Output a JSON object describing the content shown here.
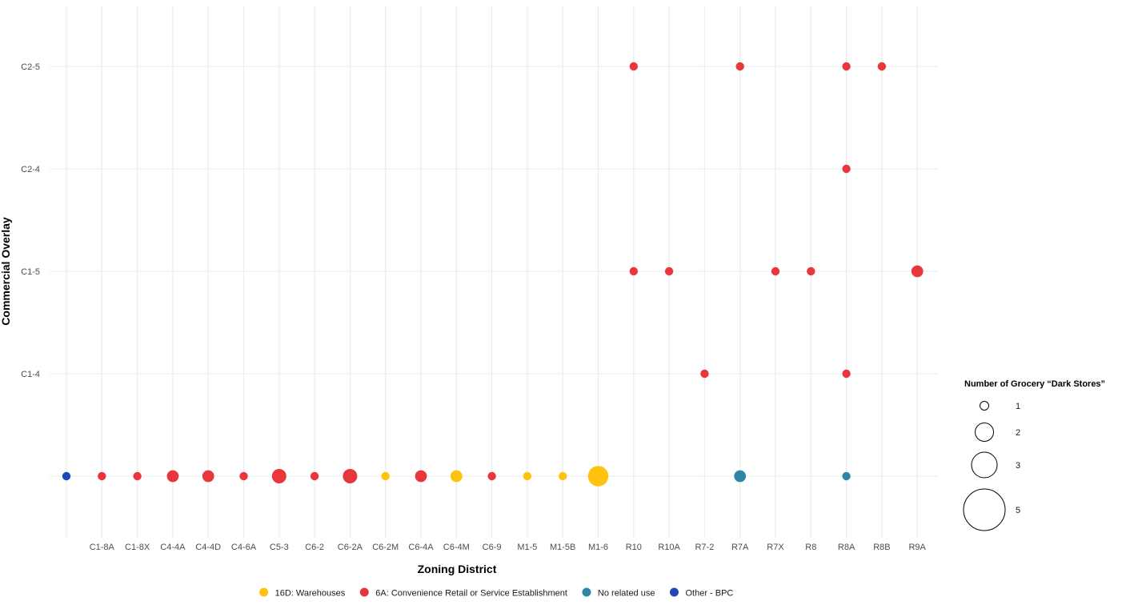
{
  "chart_data": {
    "type": "scatter",
    "title": "",
    "xlabel": "Zoning District",
    "ylabel": "Commercial Overlay",
    "x_categories": [
      "",
      "C1-8A",
      "C1-8X",
      "C4-4A",
      "C4-4D",
      "C4-6A",
      "C5-3",
      "C6-2",
      "C6-2A",
      "C6-2M",
      "C6-4A",
      "C6-4M",
      "C6-9",
      "M1-5",
      "M1-5B",
      "M1-6",
      "R10",
      "R10A",
      "R7-2",
      "R7A",
      "R7X",
      "R8",
      "R8A",
      "R8B",
      "R9A"
    ],
    "y_categories": [
      "",
      "C1-4",
      "C1-5",
      "C2-4",
      "C2-5"
    ],
    "grid": true,
    "color_legend": {
      "position": "bottom",
      "entries": [
        {
          "name": "16D: Warehouses",
          "color": "#FFC20E"
        },
        {
          "name": "6A: Convenience Retail or Service Establishment",
          "color": "#E8363A"
        },
        {
          "name": "No related use",
          "color": "#2E86A6"
        },
        {
          "name": "Other - BPC",
          "color": "#1F47B5"
        }
      ]
    },
    "size_legend": {
      "title": "Number of Grocery “Dark Stores”",
      "position": "right",
      "values": [
        1,
        2,
        3,
        5
      ]
    },
    "points": [
      {
        "x": "",
        "y": "",
        "n": 1,
        "group": "Other - BPC"
      },
      {
        "x": "C1-8A",
        "y": "",
        "n": 1,
        "group": "6A: Convenience Retail or Service Establishment"
      },
      {
        "x": "C1-8X",
        "y": "",
        "n": 1,
        "group": "6A: Convenience Retail or Service Establishment"
      },
      {
        "x": "C4-4A",
        "y": "",
        "n": 2,
        "group": "6A: Convenience Retail or Service Establishment"
      },
      {
        "x": "C4-4D",
        "y": "",
        "n": 2,
        "group": "6A: Convenience Retail or Service Establishment"
      },
      {
        "x": "C4-6A",
        "y": "",
        "n": 1,
        "group": "6A: Convenience Retail or Service Establishment"
      },
      {
        "x": "C5-3",
        "y": "",
        "n": 3,
        "group": "6A: Convenience Retail or Service Establishment"
      },
      {
        "x": "C6-2",
        "y": "",
        "n": 1,
        "group": "6A: Convenience Retail or Service Establishment"
      },
      {
        "x": "C6-2A",
        "y": "",
        "n": 3,
        "group": "6A: Convenience Retail or Service Establishment"
      },
      {
        "x": "C6-2M",
        "y": "",
        "n": 1,
        "group": "16D: Warehouses"
      },
      {
        "x": "C6-4A",
        "y": "",
        "n": 2,
        "group": "6A: Convenience Retail or Service Establishment"
      },
      {
        "x": "C6-4M",
        "y": "",
        "n": 2,
        "group": "16D: Warehouses"
      },
      {
        "x": "C6-9",
        "y": "",
        "n": 1,
        "group": "6A: Convenience Retail or Service Establishment"
      },
      {
        "x": "M1-5",
        "y": "",
        "n": 1,
        "group": "16D: Warehouses"
      },
      {
        "x": "M1-5B",
        "y": "",
        "n": 1,
        "group": "16D: Warehouses"
      },
      {
        "x": "M1-6",
        "y": "",
        "n": 6,
        "group": "16D: Warehouses"
      },
      {
        "x": "R7A",
        "y": "",
        "n": 2,
        "group": "No related use"
      },
      {
        "x": "R8A",
        "y": "",
        "n": 1,
        "group": "No related use"
      },
      {
        "x": "R7-2",
        "y": "C1-4",
        "n": 1,
        "group": "6A: Convenience Retail or Service Establishment"
      },
      {
        "x": "R8A",
        "y": "C1-4",
        "n": 1,
        "group": "6A: Convenience Retail or Service Establishment"
      },
      {
        "x": "R10",
        "y": "C1-5",
        "n": 1,
        "group": "6A: Convenience Retail or Service Establishment"
      },
      {
        "x": "R10A",
        "y": "C1-5",
        "n": 1,
        "group": "6A: Convenience Retail or Service Establishment"
      },
      {
        "x": "R7X",
        "y": "C1-5",
        "n": 1,
        "group": "6A: Convenience Retail or Service Establishment"
      },
      {
        "x": "R8",
        "y": "C1-5",
        "n": 1,
        "group": "6A: Convenience Retail or Service Establishment"
      },
      {
        "x": "R9A",
        "y": "C1-5",
        "n": 2,
        "group": "6A: Convenience Retail or Service Establishment"
      },
      {
        "x": "R8A",
        "y": "C2-4",
        "n": 1,
        "group": "6A: Convenience Retail or Service Establishment"
      },
      {
        "x": "R10",
        "y": "C2-5",
        "n": 1,
        "group": "6A: Convenience Retail or Service Establishment"
      },
      {
        "x": "R7A",
        "y": "C2-5",
        "n": 1,
        "group": "6A: Convenience Retail or Service Establishment"
      },
      {
        "x": "R8A",
        "y": "C2-5",
        "n": 1,
        "group": "6A: Convenience Retail or Service Establishment"
      },
      {
        "x": "R8B",
        "y": "C2-5",
        "n": 1,
        "group": "6A: Convenience Retail or Service Establishment"
      }
    ]
  }
}
